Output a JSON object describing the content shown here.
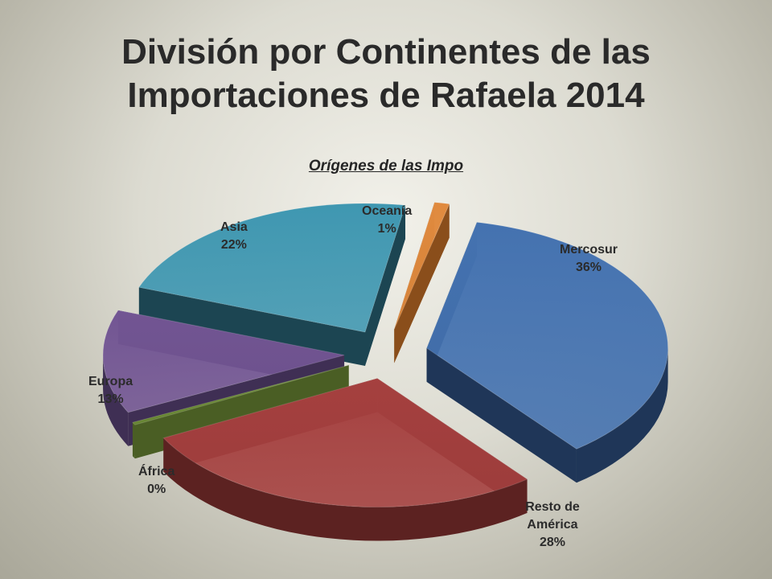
{
  "slide": {
    "title_line1": "División por Continentes de las",
    "title_line2": "Importaciones de Rafaela 2014"
  },
  "chart_data": {
    "type": "pie",
    "title": "Orígenes de las Impo",
    "exploded": true,
    "three_d": true,
    "slices": [
      {
        "label": "Mercosur",
        "value": 36,
        "display": "36%",
        "color": "#4472b0",
        "side_color": "#1f3658"
      },
      {
        "label": "Resto de América",
        "value": 28,
        "display": "28%",
        "color": "#a5403f",
        "side_color": "#5c2221"
      },
      {
        "label": "África",
        "value": 0,
        "display": "0%",
        "color": "#6b8a35",
        "side_color": "#4a5e24"
      },
      {
        "label": "Europa",
        "value": 13,
        "display": "13%",
        "color": "#725593",
        "side_color": "#3f2f54"
      },
      {
        "label": "Asia",
        "value": 22,
        "display": "22%",
        "color": "#3f97b1",
        "side_color": "#1c4552"
      },
      {
        "label": "Oceanía",
        "value": 1,
        "display": "1%",
        "color": "#e08a3e",
        "side_color": "#8a4e1b"
      }
    ]
  }
}
